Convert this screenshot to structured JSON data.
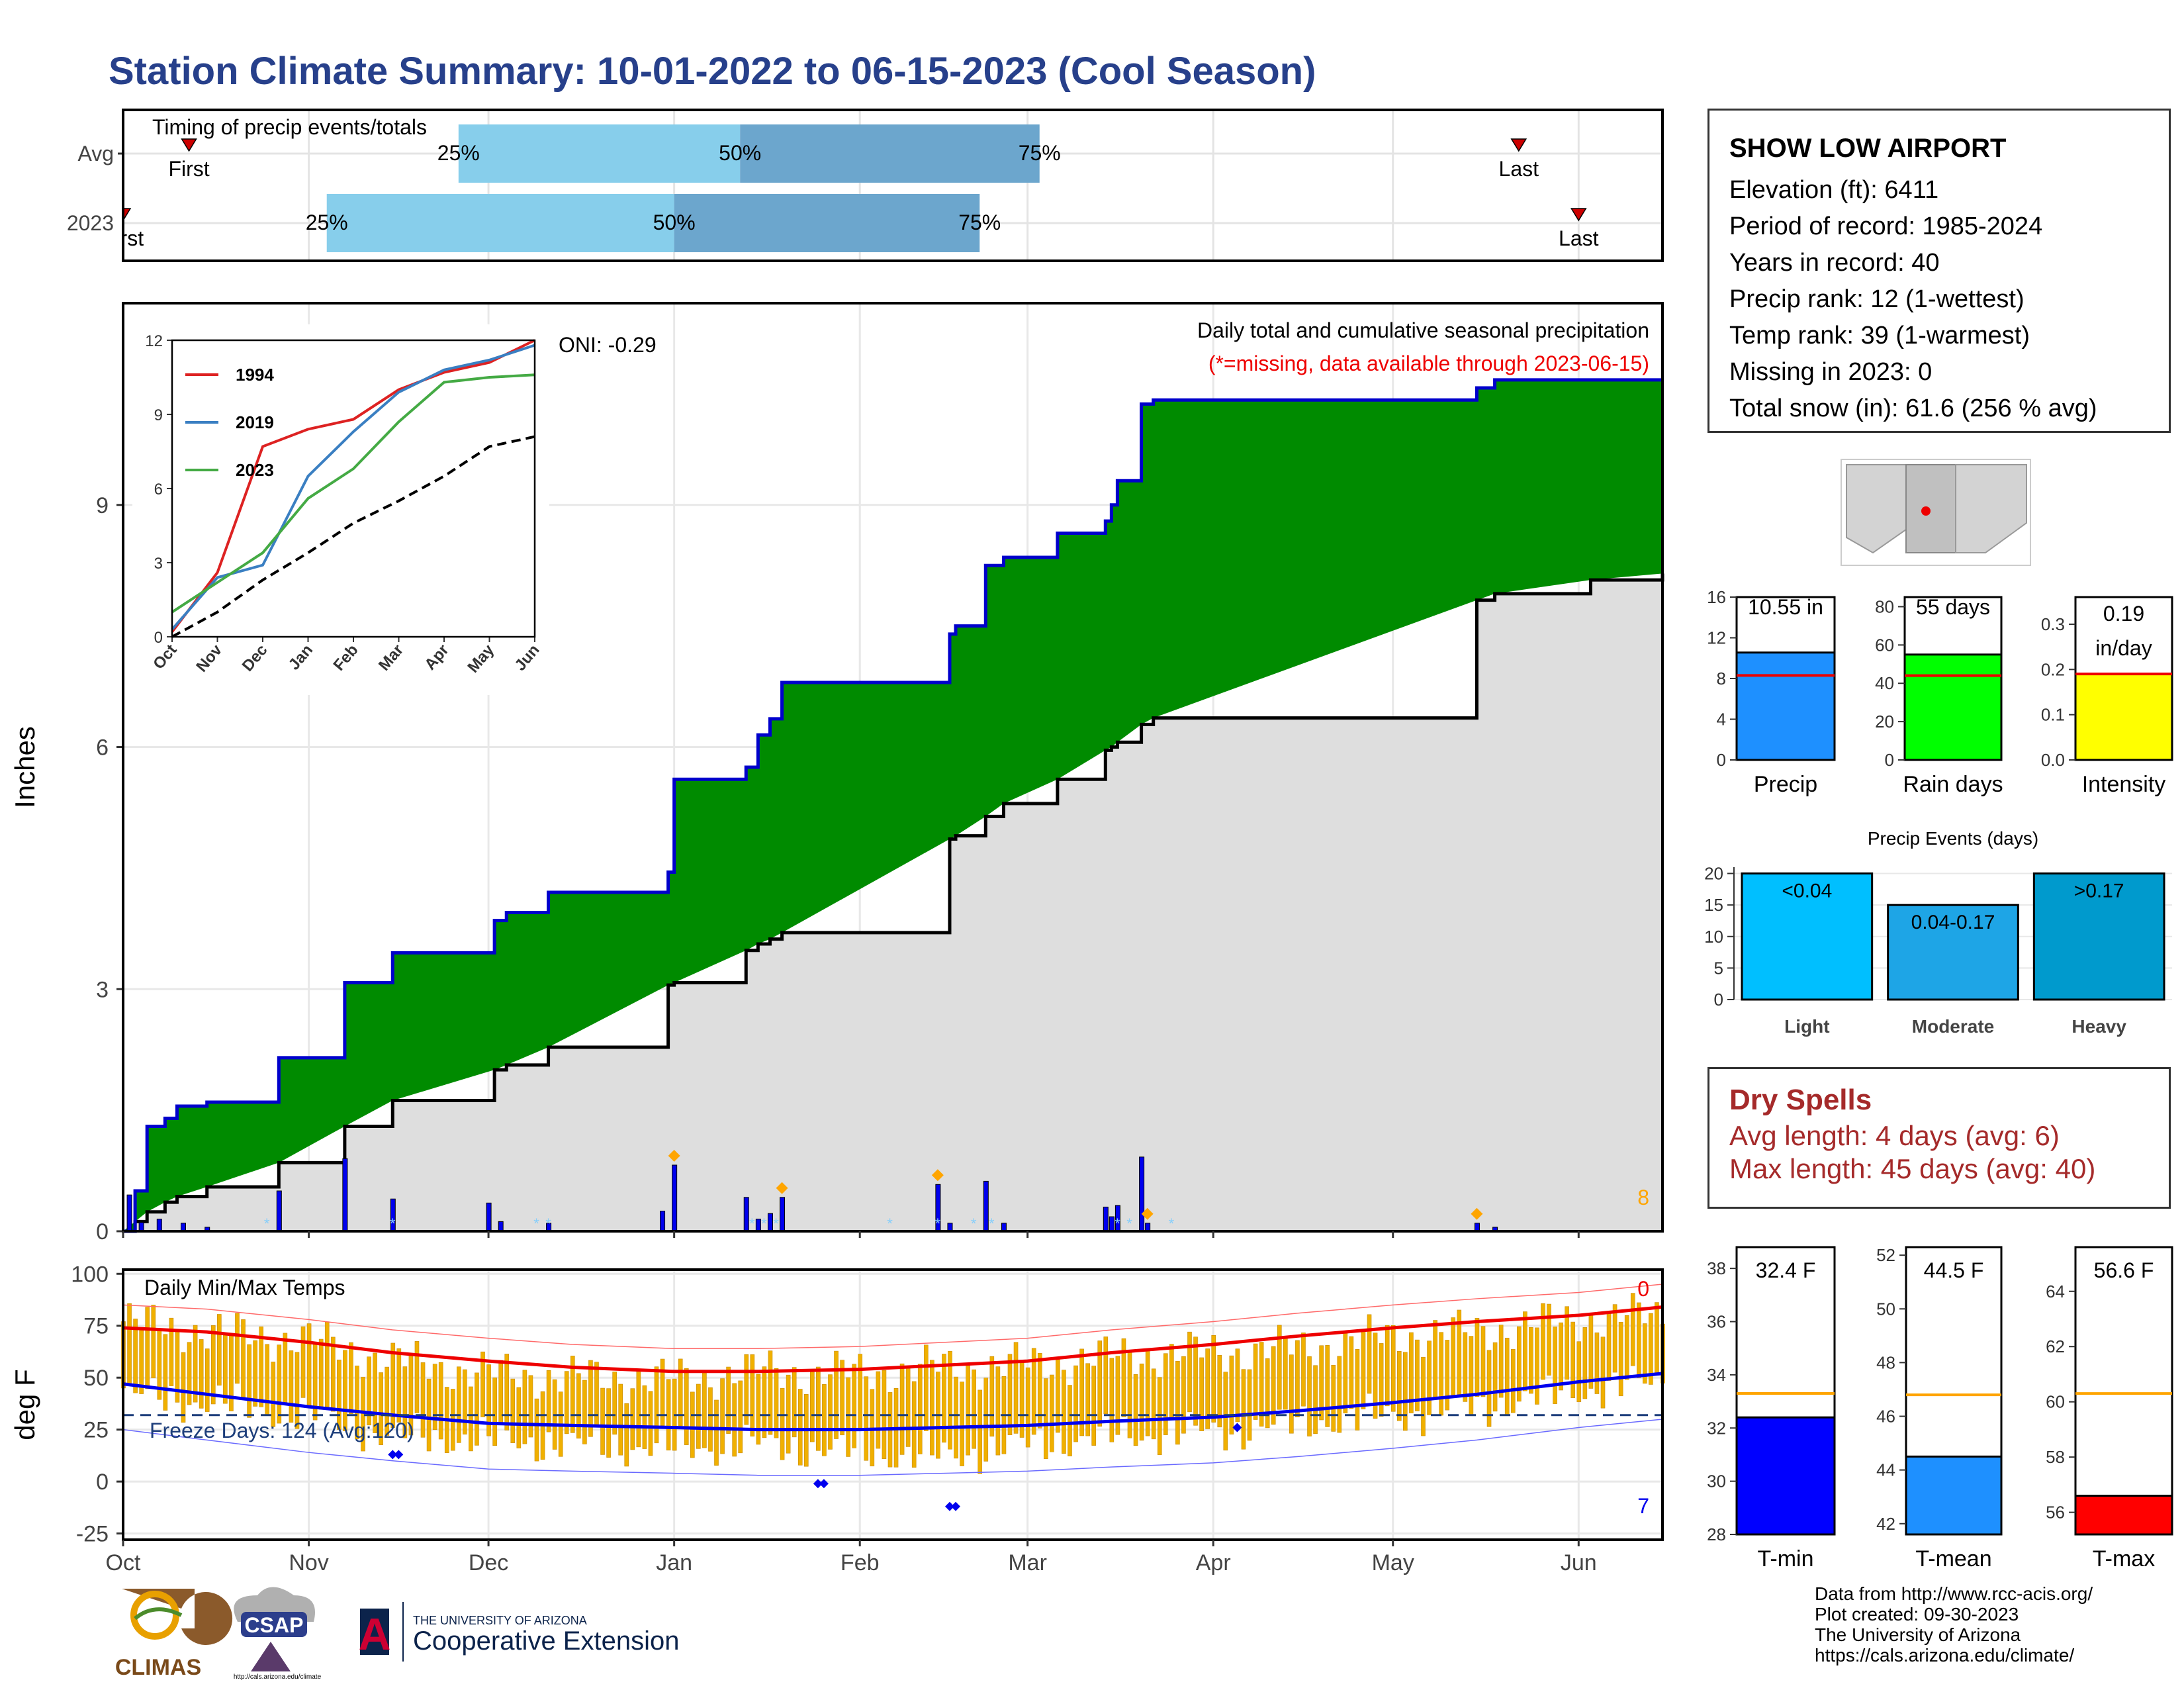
{
  "title": "Station Climate Summary: 10-01-2022 to 06-15-2023 (Cool Season)",
  "timing": {
    "header": "Timing of precip events/totals",
    "rows": [
      "Avg",
      "2023"
    ],
    "avg": {
      "first": "2022-10-12",
      "p25": "2022-11-26",
      "p50": "2023-01-12",
      "p75": "2023-03-03",
      "last": "2023-05-22"
    },
    "y2023": {
      "first": "2022-10-01",
      "p25": "2022-11-04",
      "p50": "2023-01-01",
      "p75": "2023-02-21",
      "last": "2023-06-01"
    },
    "labels": {
      "first": "First",
      "last": "Last",
      "p25": "25%",
      "p50": "50%",
      "p75": "75%"
    },
    "colors": {
      "early": "#87CEEB",
      "late": "#6CA6CD",
      "marker": "#CC0000"
    }
  },
  "precip_panel": {
    "ylabel": "Inches",
    "subtitle": "Daily total and cumulative seasonal precipitation",
    "missing_note": "(*=missing, data available through 2023-06-15)",
    "oni": "ONI: -0.29",
    "corner_count": "8",
    "colors": {
      "above_normal": "#008B00",
      "normal_fill": "#DEDEDE",
      "obs_line": "#0000CC",
      "daily_bar": "#0000EE",
      "diamond": "#FFA500",
      "snow": "#87CEFA"
    }
  },
  "temp_panel": {
    "ylabel": "deg F",
    "header": "Daily Min/Max Temps",
    "freeze": "Freeze Days: 124 (Avg:120)",
    "count_top": "0",
    "count_bottom": "7",
    "colors": {
      "bars": "#F0B000",
      "max_avg": "#EE0000",
      "min_avg": "#0000EE",
      "max_record": "#FF6A6A",
      "min_record": "#6A6AFF",
      "freeze_line": "#1C3D7A"
    }
  },
  "month_axis": [
    "Oct",
    "Nov",
    "Dec",
    "Jan",
    "Feb",
    "Mar",
    "Apr",
    "May",
    "Jun"
  ],
  "station": {
    "name": "SHOW LOW AIRPORT",
    "lines": [
      "Elevation (ft): 6411",
      "Period of record: 1985-2024",
      "Years in record: 40",
      "Precip rank: 12 (1-wettest)",
      "Temp rank: 39 (1-warmest)",
      "Missing in 2023: 0",
      "Total snow (in): 61.6 (256 % avg)"
    ]
  },
  "summary_bars": {
    "precip": {
      "label": "Precip",
      "value_text": "10.55 in",
      "value": 10.55,
      "avg": 8.3,
      "ymax": 16,
      "ticks": [
        0,
        4,
        8,
        12,
        16
      ],
      "color": "#1E90FF"
    },
    "rain_days": {
      "label": "Rain days",
      "value_text": "55 days",
      "value": 55,
      "avg": 44,
      "ymax": 85,
      "ticks": [
        0,
        20,
        40,
        60,
        80
      ],
      "color": "#00FF00"
    },
    "intensity": {
      "label": "Intensity",
      "value_text_1": "0.19",
      "value_text_2": "in/day",
      "value": 0.19,
      "avg": 0.19,
      "ymax": 0.36,
      "ticks": [
        "0.0",
        "0.1",
        "0.2",
        "0.3"
      ],
      "color": "#FFFF00"
    }
  },
  "precip_events": {
    "title": "Precip Events (days)",
    "categories": [
      "Light",
      "Moderate",
      "Heavy"
    ],
    "bin_labels": [
      "<0.04",
      "0.04-0.17",
      ">0.17"
    ],
    "values": [
      20,
      15,
      20
    ],
    "ticks": [
      0,
      5,
      10,
      15,
      20
    ],
    "colors": [
      "#00BFFF",
      "#1EA5E6",
      "#009ACD"
    ]
  },
  "dry_spells": {
    "title": "Dry Spells",
    "avg_line": "Avg length: 4 days (avg: 6)",
    "max_line": "Max length: 45 days (avg: 40)"
  },
  "temp_summary": {
    "tmin": {
      "label": "T-min",
      "value_text": "32.4 F",
      "value": 32.4,
      "avg": 33.3,
      "ylim": [
        28,
        38.8
      ],
      "ticks": [
        28,
        30,
        32,
        34,
        36,
        38
      ],
      "color": "#0000FF"
    },
    "tmean": {
      "label": "T-mean",
      "value_text": "44.5 F",
      "value": 44.5,
      "avg": 46.8,
      "ylim": [
        41.6,
        52.3
      ],
      "ticks": [
        42,
        44,
        46,
        48,
        50,
        52
      ],
      "color": "#1E90FF"
    },
    "tmax": {
      "label": "T-max",
      "value_text": "56.6 F",
      "value": 56.6,
      "avg": 60.3,
      "ylim": [
        55.2,
        65.6
      ],
      "ticks": [
        56,
        58,
        60,
        62,
        64
      ],
      "color": "#FF0000"
    },
    "avg_color": "#FFA500"
  },
  "footer": [
    "Data from http://www.rcc-acis.org/",
    "Plot created: 09-30-2023",
    "The University of Arizona",
    "https://cals.arizona.edu/climate/"
  ],
  "logos": {
    "climas": "CLIMAS",
    "csap": "CSAP",
    "csap_url": "http://cals.arizona.edu/climate",
    "ua_line1": "THE UNIVERSITY OF ARIZONA",
    "ua_line2": "Cooperative Extension",
    "ua_mark": "A"
  },
  "chart_data": [
    {
      "type": "area",
      "title": "Daily total and cumulative seasonal precipitation",
      "ylabel": "Inches",
      "ylim": [
        0,
        11.5
      ],
      "yticks": [
        0,
        3,
        6,
        9
      ],
      "x": [
        "2022-10-01",
        "2022-10-03",
        "2022-10-05",
        "2022-10-08",
        "2022-10-10",
        "2022-10-15",
        "2022-10-27",
        "2022-11-07",
        "2022-11-15",
        "2022-12-02",
        "2022-12-04",
        "2022-12-11",
        "2022-12-31",
        "2023-01-01",
        "2023-01-13",
        "2023-01-15",
        "2023-01-17",
        "2023-01-19",
        "2023-02-16",
        "2023-02-17",
        "2023-02-22",
        "2023-02-25",
        "2023-03-06",
        "2023-03-14",
        "2023-03-15",
        "2023-03-16",
        "2023-03-20",
        "2023-03-22",
        "2023-05-15",
        "2023-05-18",
        "2023-06-03",
        "2023-06-15"
      ],
      "series": [
        {
          "values": [
            0,
            0.5,
            1.3,
            1.4,
            1.55,
            1.6,
            2.15,
            3.08,
            3.45,
            3.85,
            3.95,
            4.2,
            4.45,
            5.6,
            5.75,
            6.15,
            6.35,
            6.8,
            7.4,
            7.5,
            8.25,
            8.35,
            8.65,
            8.8,
            9.0,
            9.3,
            10.25,
            10.3,
            10.45,
            10.55,
            10.55,
            10.55
          ]
        },
        {
          "values": [
            0,
            0.12,
            0.24,
            0.36,
            0.43,
            0.55,
            0.85,
            1.3,
            1.62,
            2.0,
            2.06,
            2.28,
            3.05,
            3.08,
            3.48,
            3.56,
            3.62,
            3.7,
            4.86,
            4.9,
            5.14,
            5.3,
            5.6,
            5.96,
            6.0,
            6.06,
            6.28,
            6.36,
            7.82,
            7.9,
            8.07,
            8.15
          ]
        }
      ],
      "daily_dates": [
        "2022-10-02",
        "2022-10-04",
        "2022-10-07",
        "2022-10-11",
        "2022-10-15",
        "2022-10-27",
        "2022-11-07",
        "2022-11-15",
        "2022-12-01",
        "2022-12-03",
        "2022-12-11",
        "2022-12-30",
        "2023-01-01",
        "2023-01-13",
        "2023-01-15",
        "2023-01-17",
        "2023-01-19",
        "2023-02-14",
        "2023-02-16",
        "2023-02-22",
        "2023-02-25",
        "2023-03-14",
        "2023-03-15",
        "2023-03-16",
        "2023-03-20",
        "2023-03-21",
        "2023-05-15",
        "2023-05-18"
      ],
      "daily_values": [
        0.45,
        0.11,
        0.15,
        0.1,
        0.05,
        0.5,
        0.9,
        0.4,
        0.35,
        0.12,
        0.1,
        0.25,
        0.82,
        0.42,
        0.15,
        0.22,
        0.42,
        0.58,
        0.1,
        0.62,
        0.1,
        0.3,
        0.18,
        0.32,
        0.92,
        0.1,
        0.1,
        0.05
      ]
    },
    {
      "type": "line",
      "title": "",
      "x": [
        "Oct",
        "Nov",
        "Dec",
        "Jan",
        "Feb",
        "Mar",
        "Apr",
        "May",
        "Jun"
      ],
      "yticks": [
        0,
        3,
        6,
        9,
        12
      ],
      "ylim": [
        0,
        12
      ],
      "series": [
        {
          "name": "1994",
          "color": "#DD2222",
          "values": [
            0.2,
            2.6,
            7.7,
            8.4,
            8.8,
            10.0,
            10.7,
            11.1,
            12.0
          ]
        },
        {
          "name": "2019",
          "color": "#3A7FC2",
          "values": [
            0.3,
            2.4,
            2.9,
            6.5,
            8.3,
            9.9,
            10.8,
            11.2,
            11.8
          ]
        },
        {
          "name": "2023",
          "color": "#44AA44",
          "values": [
            1.0,
            2.2,
            3.4,
            5.6,
            6.8,
            8.7,
            10.3,
            10.5,
            10.6
          ]
        },
        {
          "name": "",
          "color": "#000000",
          "values": [
            0.0,
            1.0,
            2.3,
            3.4,
            4.6,
            5.5,
            6.5,
            7.7,
            8.1
          ]
        }
      ]
    },
    {
      "type": "bar",
      "title": "Daily Min/Max Temps",
      "ylabel": "deg F",
      "ylim": [
        -28,
        102
      ],
      "yticks": [
        -25,
        0,
        25,
        50,
        75,
        100
      ],
      "x": [
        "2022-10-01",
        "2022-10-15",
        "2022-11-01",
        "2022-11-15",
        "2022-12-01",
        "2022-12-15",
        "2023-01-01",
        "2023-01-15",
        "2023-02-01",
        "2023-02-15",
        "2023-03-01",
        "2023-03-15",
        "2023-04-01",
        "2023-04-15",
        "2023-05-01",
        "2023-05-15",
        "2023-06-01",
        "2023-06-15"
      ],
      "series": [
        {
          "name": "",
          "values": [
            77,
            72,
            68,
            58,
            52,
            50,
            49,
            53,
            52,
            55,
            56,
            60,
            62,
            64,
            70,
            72,
            78,
            80
          ]
        },
        {
          "name": "",
          "values": [
            42,
            38,
            32,
            22,
            20,
            18,
            16,
            18,
            14,
            12,
            18,
            22,
            24,
            28,
            32,
            36,
            44,
            48
          ]
        },
        {
          "name": "",
          "values": [
            74,
            72,
            67,
            62,
            58,
            55,
            53,
            53,
            54,
            56,
            58,
            62,
            66,
            70,
            74,
            77,
            80,
            84
          ]
        },
        {
          "name": "",
          "values": [
            47,
            42,
            36,
            32,
            28,
            27,
            26,
            25,
            25,
            26,
            27,
            29,
            31,
            34,
            38,
            42,
            48,
            52
          ]
        }
      ],
      "freeze_threshold": 32
    }
  ]
}
